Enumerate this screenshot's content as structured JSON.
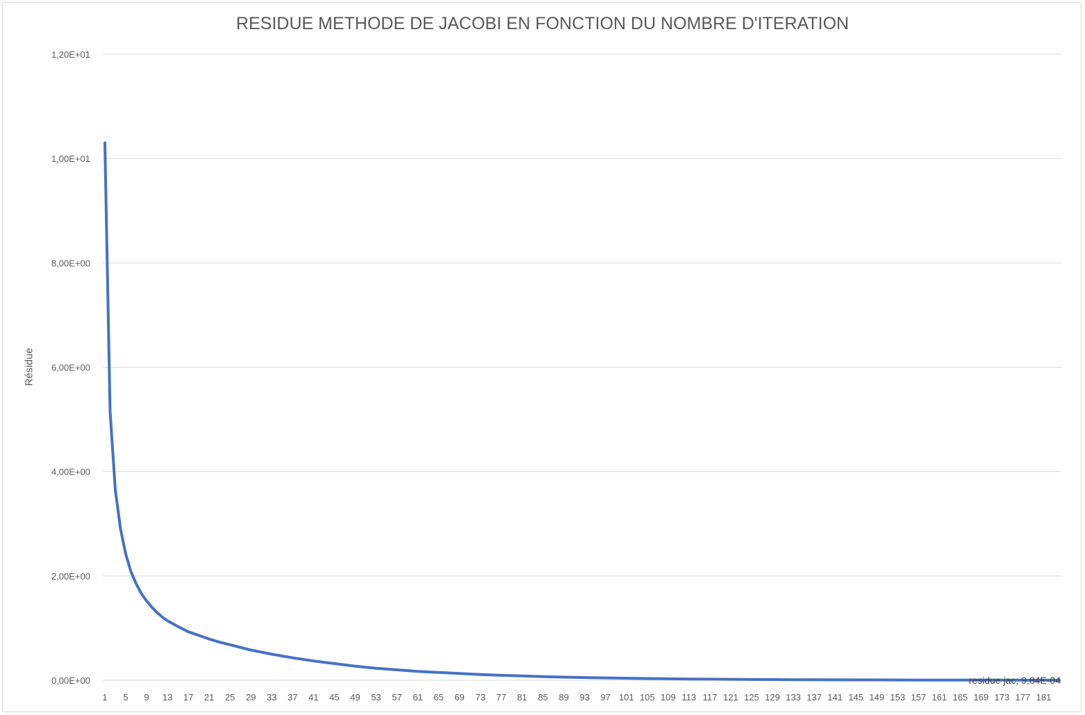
{
  "chart_data": {
    "type": "line",
    "title": "RESIDUE METHODE DE JACOBI EN FONCTION DU NOMBRE D'ITERATION",
    "xlabel": "",
    "ylabel": "Résidue",
    "ylim": [
      0,
      12
    ],
    "yticks": [
      {
        "value": 0,
        "label": "0,00E+00"
      },
      {
        "value": 2,
        "label": "2,00E+00"
      },
      {
        "value": 4,
        "label": "4,00E+00"
      },
      {
        "value": 6,
        "label": "6,00E+00"
      },
      {
        "value": 8,
        "label": "8,00E+00"
      },
      {
        "value": 10,
        "label": "1,00E+01"
      },
      {
        "value": 12,
        "label": "1,20E+01"
      }
    ],
    "xrange": [
      1,
      184
    ],
    "xtick_labels": [
      "1",
      "5",
      "9",
      "13",
      "17",
      "21",
      "25",
      "29",
      "33",
      "37",
      "41",
      "45",
      "49",
      "53",
      "57",
      "61",
      "65",
      "69",
      "73",
      "77",
      "81",
      "85",
      "89",
      "93",
      "97",
      "101",
      "105",
      "109",
      "113",
      "117",
      "121",
      "125",
      "129",
      "133",
      "137",
      "141",
      "145",
      "149",
      "153",
      "157",
      "161",
      "165",
      "169",
      "173",
      "177",
      "181"
    ],
    "grid": true,
    "legend": "none",
    "line_color": "#4472c4",
    "series": [
      {
        "name": "residue jac",
        "points": [
          [
            1,
            10.3
          ],
          [
            2,
            5.15
          ],
          [
            3,
            3.65
          ],
          [
            4,
            2.9
          ],
          [
            5,
            2.42
          ],
          [
            6,
            2.08
          ],
          [
            7,
            1.85
          ],
          [
            8,
            1.66
          ],
          [
            9,
            1.52
          ],
          [
            10,
            1.4
          ],
          [
            11,
            1.3
          ],
          [
            12,
            1.21
          ],
          [
            13,
            1.14
          ],
          [
            15,
            1.03
          ],
          [
            17,
            0.93
          ],
          [
            19,
            0.86
          ],
          [
            21,
            0.79
          ],
          [
            23,
            0.73
          ],
          [
            25,
            0.68
          ],
          [
            29,
            0.58
          ],
          [
            33,
            0.5
          ],
          [
            37,
            0.43
          ],
          [
            41,
            0.37
          ],
          [
            45,
            0.32
          ],
          [
            49,
            0.27
          ],
          [
            53,
            0.23
          ],
          [
            57,
            0.2
          ],
          [
            61,
            0.17
          ],
          [
            65,
            0.15
          ],
          [
            69,
            0.13
          ],
          [
            73,
            0.11
          ],
          [
            77,
            0.095
          ],
          [
            81,
            0.082
          ],
          [
            85,
            0.07
          ],
          [
            89,
            0.06
          ],
          [
            93,
            0.052
          ],
          [
            97,
            0.045
          ],
          [
            101,
            0.039
          ],
          [
            105,
            0.033
          ],
          [
            109,
            0.028
          ],
          [
            113,
            0.024
          ],
          [
            117,
            0.021
          ],
          [
            121,
            0.018
          ],
          [
            125,
            0.015
          ],
          [
            129,
            0.013
          ],
          [
            133,
            0.011
          ],
          [
            137,
            0.0095
          ],
          [
            141,
            0.008
          ],
          [
            145,
            0.007
          ],
          [
            149,
            0.006
          ],
          [
            153,
            0.005
          ],
          [
            157,
            0.0043
          ],
          [
            161,
            0.0037
          ],
          [
            165,
            0.0031
          ],
          [
            169,
            0.0026
          ],
          [
            173,
            0.0022
          ],
          [
            177,
            0.0018
          ],
          [
            181,
            0.0012
          ],
          [
            184,
            0.000984
          ]
        ]
      }
    ],
    "annotations": [
      {
        "text": "residue jac; 9,84E-04",
        "x": 184,
        "y": 0.000984
      }
    ]
  }
}
